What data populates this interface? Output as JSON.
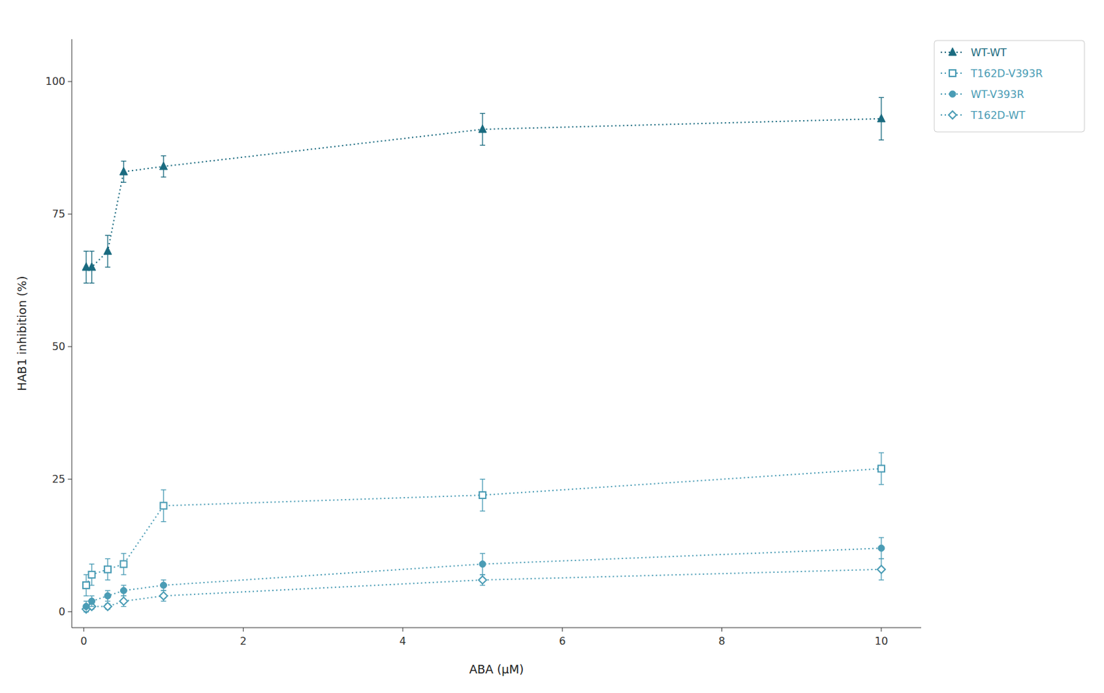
{
  "chart_data": {
    "type": "line",
    "x": [
      0.03,
      0.1,
      0.3,
      0.5,
      1.0,
      5.0,
      10.0
    ],
    "xlabel": "ABA (μM)",
    "ylabel": "HAB1 inhibition (%)",
    "xlim": [
      -0.15,
      10.5
    ],
    "ylim": [
      -3,
      108
    ],
    "xticks": [
      0,
      2,
      4,
      6,
      8,
      10
    ],
    "yticks": [
      0,
      25,
      50,
      75,
      100
    ],
    "grid": false,
    "legend": "right",
    "series": [
      {
        "name": "WT-WT",
        "color": "#1a6b80",
        "marker": "triangle",
        "line_style": "dotted",
        "values": [
          65,
          65,
          68,
          83,
          84,
          91,
          93
        ],
        "errors": [
          3,
          3,
          3,
          2,
          2,
          3,
          4
        ]
      },
      {
        "name": "T162D-V393R",
        "color": "#4a9cb5",
        "marker": "open-square",
        "line_style": "dotted",
        "values": [
          5,
          7,
          8,
          9,
          20,
          22,
          27
        ],
        "errors": [
          2,
          2,
          2,
          2,
          3,
          3,
          3
        ]
      },
      {
        "name": "WT-V393R",
        "color": "#4a9cb5",
        "marker": "circle",
        "line_style": "dotted",
        "values": [
          1,
          2,
          3,
          4,
          5,
          9,
          12
        ],
        "errors": [
          1,
          1,
          1,
          1,
          1,
          2,
          2
        ]
      },
      {
        "name": "T162D-WT",
        "color": "#4a9cb5",
        "marker": "open-diamond",
        "line_style": "dotted",
        "values": [
          0.5,
          1,
          1,
          2,
          3,
          6,
          8
        ],
        "errors": [
          0.5,
          0.5,
          0.5,
          1,
          1,
          1,
          2
        ]
      }
    ]
  }
}
